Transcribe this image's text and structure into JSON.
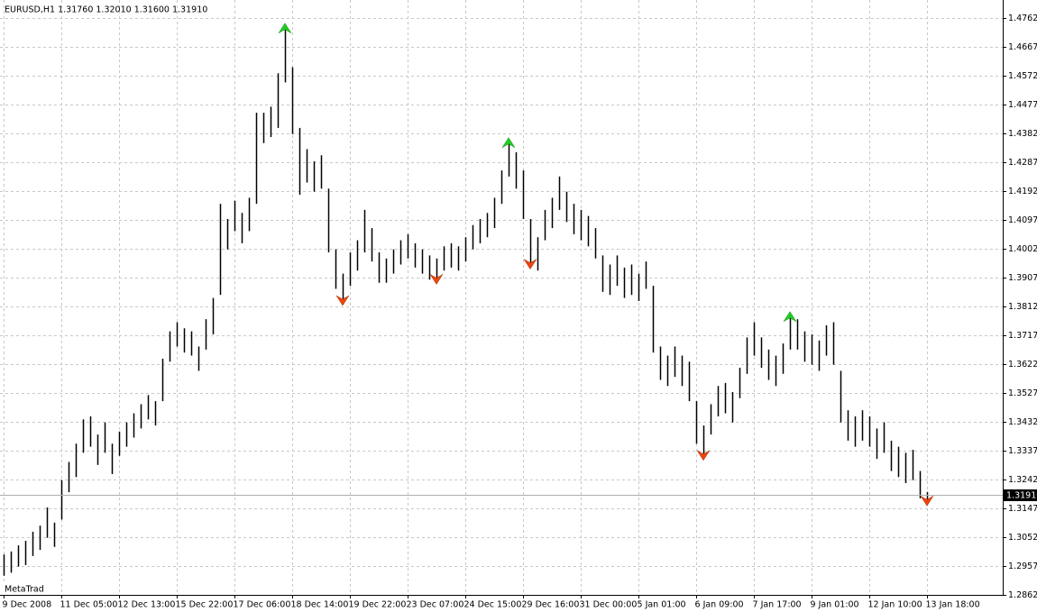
{
  "chart_data": {
    "type": "ohlc",
    "title": "EURUSD,H1  1.31760 1.32010 1.31600 1.31910",
    "watermark": "MetaTrad",
    "color": "#000000",
    "up_color": "#22cc22",
    "down_color": "#ee4411",
    "grid": true,
    "xlim": [
      -0.5,
      138.5
    ],
    "ylim": [
      1.2862,
      1.48065
    ],
    "xticks": [
      {
        "value": 0,
        "label": "9 Dec 2008"
      },
      {
        "value": 8,
        "label": "11 Dec 05:00"
      },
      {
        "value": 16,
        "label": "12 Dec 13:00"
      },
      {
        "value": 24,
        "label": "15 Dec 22:00"
      },
      {
        "value": 32,
        "label": "17 Dec 06:00"
      },
      {
        "value": 40,
        "label": "18 Dec 14:00"
      },
      {
        "value": 48,
        "label": "19 Dec 22:00"
      },
      {
        "value": 56,
        "label": "23 Dec 07:00"
      },
      {
        "value": 64,
        "label": "24 Dec 15:00"
      },
      {
        "value": 72,
        "label": "29 Dec 16:00"
      },
      {
        "value": 80,
        "label": "31 Dec 00:00"
      },
      {
        "value": 88,
        "label": "5 Jan 01:00"
      },
      {
        "value": 96,
        "label": "6 Jan 09:00"
      },
      {
        "value": 104,
        "label": "7 Jan 17:00"
      },
      {
        "value": 112,
        "label": "9 Jan 01:00"
      },
      {
        "value": 120,
        "label": "12 Jan 10:00"
      },
      {
        "value": 128,
        "label": "13 Jan 18:00"
      }
    ],
    "yticks": [
      {
        "value": 1.4762,
        "label": "1.47620"
      },
      {
        "value": 1.4667,
        "label": "1.46670"
      },
      {
        "value": 1.4572,
        "label": "1.45720"
      },
      {
        "value": 1.4477,
        "label": "1.44770"
      },
      {
        "value": 1.4382,
        "label": "1.43820"
      },
      {
        "value": 1.4287,
        "label": "1.42870"
      },
      {
        "value": 1.4192,
        "label": "1.41920"
      },
      {
        "value": 1.4097,
        "label": "1.40970"
      },
      {
        "value": 1.4002,
        "label": "1.40020"
      },
      {
        "value": 1.3907,
        "label": "1.39070"
      },
      {
        "value": 1.3812,
        "label": "1.38120"
      },
      {
        "value": 1.3717,
        "label": "1.37170"
      },
      {
        "value": 1.3622,
        "label": "1.36220"
      },
      {
        "value": 1.3527,
        "label": "1.35270"
      },
      {
        "value": 1.3432,
        "label": "1.34320"
      },
      {
        "value": 1.3337,
        "label": "1.33370"
      },
      {
        "value": 1.3242,
        "label": "1.32420"
      },
      {
        "value": 1.3147,
        "label": "1.31470"
      },
      {
        "value": 1.3052,
        "label": "1.30520"
      },
      {
        "value": 1.2957,
        "label": "1.29570"
      },
      {
        "value": 1.2862,
        "label": "1.28620"
      }
    ],
    "current_price": {
      "value": 1.3191,
      "label": "1.31910"
    },
    "high": [
      1.2995,
      1.3005,
      1.3025,
      1.304,
      1.307,
      1.309,
      1.315,
      1.31,
      1.324,
      1.33,
      1.336,
      1.344,
      1.345,
      1.339,
      1.343,
      1.336,
      1.34,
      1.343,
      1.346,
      1.349,
      1.352,
      1.35,
      1.364,
      1.373,
      1.376,
      1.374,
      1.373,
      1.368,
      1.377,
      1.384,
      1.415,
      1.41,
      1.416,
      1.412,
      1.417,
      1.445,
      1.445,
      1.447,
      1.458,
      1.474,
      1.46,
      1.44,
      1.433,
      1.429,
      1.431,
      1.42,
      1.4,
      1.392,
      1.399,
      1.403,
      1.413,
      1.407,
      1.399,
      1.397,
      1.4,
      1.403,
      1.405,
      1.402,
      1.4,
      1.398,
      1.397,
      1.401,
      1.402,
      1.401,
      1.404,
      1.408,
      1.41,
      1.412,
      1.417,
      1.426,
      1.436,
      1.432,
      1.426,
      1.41,
      1.404,
      1.413,
      1.417,
      1.424,
      1.419,
      1.415,
      1.413,
      1.411,
      1.407,
      1.398,
      1.395,
      1.398,
      1.394,
      1.395,
      1.392,
      1.396,
      1.388,
      1.368,
      1.365,
      1.368,
      1.365,
      1.363,
      1.35,
      1.342,
      1.349,
      1.355,
      1.356,
      1.353,
      1.361,
      1.371,
      1.376,
      1.371,
      1.367,
      1.365,
      1.369,
      1.379,
      1.377,
      1.373,
      1.372,
      1.37,
      1.375,
      1.376,
      1.36,
      1.347,
      1.345,
      1.347,
      1.345,
      1.341,
      1.343,
      1.337,
      1.335,
      1.333,
      1.334,
      1.327,
      1.3201
    ],
    "low": [
      1.2925,
      1.2935,
      1.2955,
      1.296,
      1.299,
      1.301,
      1.305,
      1.302,
      1.311,
      1.32,
      1.325,
      1.333,
      1.335,
      1.329,
      1.333,
      1.326,
      1.332,
      1.335,
      1.338,
      1.341,
      1.344,
      1.342,
      1.35,
      1.363,
      1.368,
      1.366,
      1.365,
      1.36,
      1.367,
      1.372,
      1.385,
      1.4,
      1.406,
      1.402,
      1.406,
      1.415,
      1.435,
      1.437,
      1.44,
      1.455,
      1.438,
      1.418,
      1.422,
      1.419,
      1.42,
      1.399,
      1.387,
      1.382,
      1.388,
      1.393,
      1.399,
      1.396,
      1.389,
      1.389,
      1.392,
      1.395,
      1.397,
      1.394,
      1.392,
      1.39,
      1.389,
      1.393,
      1.394,
      1.393,
      1.396,
      1.4,
      1.402,
      1.404,
      1.407,
      1.415,
      1.424,
      1.42,
      1.41,
      1.394,
      1.393,
      1.403,
      1.407,
      1.413,
      1.409,
      1.405,
      1.403,
      1.401,
      1.397,
      1.386,
      1.385,
      1.388,
      1.384,
      1.385,
      1.383,
      1.387,
      1.366,
      1.357,
      1.355,
      1.358,
      1.355,
      1.35,
      1.336,
      1.331,
      1.339,
      1.345,
      1.346,
      1.343,
      1.351,
      1.359,
      1.365,
      1.361,
      1.357,
      1.355,
      1.359,
      1.367,
      1.367,
      1.363,
      1.362,
      1.36,
      1.365,
      1.362,
      1.343,
      1.337,
      1.335,
      1.337,
      1.335,
      1.331,
      1.333,
      1.327,
      1.325,
      1.323,
      1.324,
      1.318,
      1.316
    ],
    "up_arrows": {
      "bars": [
        39,
        70,
        109
      ],
      "prices": [
        1.4745,
        1.4368,
        1.3795
      ]
    },
    "down_arrows": {
      "bars": [
        47,
        60,
        73,
        97,
        128
      ],
      "prices": [
        1.3815,
        1.3885,
        1.3935,
        1.3305,
        1.3155
      ]
    }
  }
}
